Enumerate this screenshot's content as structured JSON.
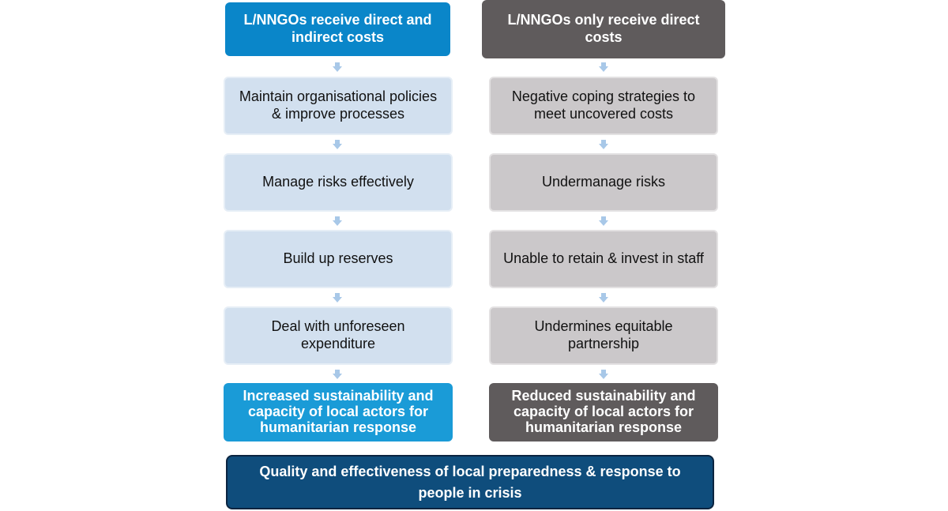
{
  "colors": {
    "left_header": "#0a86c9",
    "right_header": "#5f5b5c",
    "left_step_fill": "#d2e0ef",
    "left_step_border": "#e6eef6",
    "right_step_fill": "#cbc8ca",
    "right_step_border": "#e3e1e2",
    "left_outcome": "#1a9bd7",
    "right_outcome": "#5f5b5c",
    "final_fill": "#0f4d7c",
    "arrow": "#a8c8e8"
  },
  "left_column": {
    "header": "L/NNGOs receive direct and indirect costs",
    "steps": [
      "Maintain organisational policies & improve processes",
      "Manage risks effectively",
      "Build up reserves",
      "Deal with unforeseen expenditure"
    ],
    "outcome": "Increased sustainability and capacity of local actors for humanitarian response"
  },
  "right_column": {
    "header": "L/NNGOs only receive direct costs",
    "steps": [
      "Negative coping strategies to meet uncovered costs",
      "Undermanage risks",
      "Unable to retain & invest in staff",
      "Undermines equitable partnership"
    ],
    "outcome": "Reduced sustainability and capacity of local actors for humanitarian response"
  },
  "final_outcome": "Quality and effectiveness of local preparedness & response to people in crisis"
}
